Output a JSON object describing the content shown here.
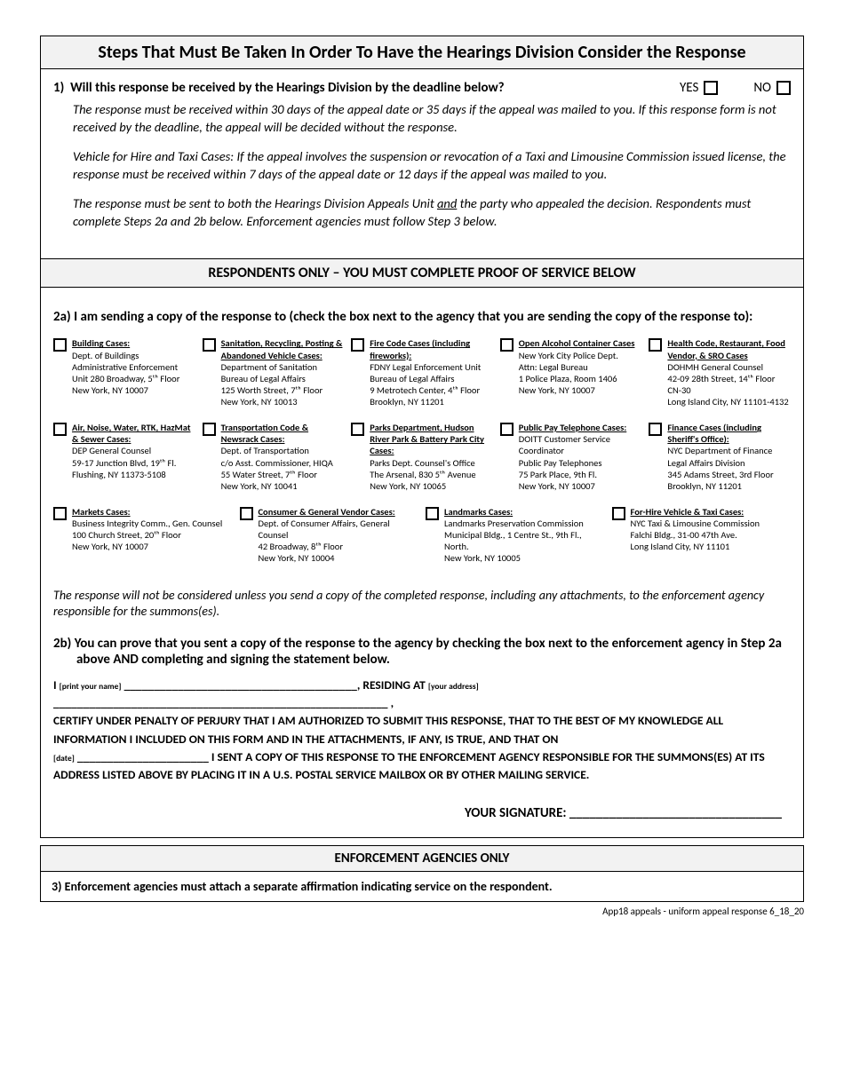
{
  "main_title": "Steps That Must Be Taken In Order To Have the Hearings Division Consider the Response",
  "q1": {
    "number": "1)",
    "question": "Will this response be received by the Hearings Division by the deadline below?",
    "yes": "YES",
    "no": "NO",
    "p1": "The response must be received within 30 days of the appeal date or 35 days if the appeal was mailed to you.  If this response form is not received by the deadline, the appeal will be decided without the response.",
    "p2": "Vehicle for Hire and Taxi Cases: If the appeal involves the suspension or revocation of a Taxi and Limousine Commission issued license, the response must be received within 7 days of the appeal date or 12 days if the appeal was mailed to you.",
    "p3a": "The response must be sent to both the Hearings Division Appeals Unit ",
    "p3_and": "and",
    "p3b": " the party who appealed the decision.  Respondents must complete Steps 2a and 2b below.  Enforcement agencies must follow Step 3 below."
  },
  "respondents_bar": "RESPONDENTS ONLY – YOU MUST COMPLETE PROOF OF SERVICE BELOW",
  "q2a_heading": "2a)  I am sending a copy of the response to (check the box next to the agency that you are sending the copy of the response to):",
  "agencies_row1": [
    {
      "title": "Building Cases:",
      "lines": [
        "Dept. of Buildings",
        "Administrative Enforcement",
        "Unit 280 Broadway, 5ᵗʰ Floor",
        "New York, NY 10007"
      ]
    },
    {
      "title": "Sanitation, Recycling, Posting & Abandoned Vehicle Cases:",
      "lines": [
        "Department of Sanitation",
        "Bureau of Legal Affairs",
        "125 Worth Street, 7ᵗʰ Floor",
        "New York, NY 10013"
      ]
    },
    {
      "title": "Fire Code Cases (including fireworks):",
      "lines": [
        "FDNY Legal Enforcement Unit",
        "Bureau of Legal Affairs",
        "9 Metrotech Center, 4ᵗʰ Floor",
        "Brooklyn, NY 11201"
      ]
    },
    {
      "title": "Open Alcohol Container Cases",
      "lines": [
        "New York City Police Dept.",
        "Attn: Legal Bureau",
        "1 Police Plaza, Room 1406",
        "New York, NY 10007"
      ]
    },
    {
      "title": "Health Code, Restaurant, Food Vendor, & SRO Cases",
      "lines": [
        "DOHMH General Counsel",
        "42-09 28th Street, 14ᵗʰ Floor CN-30",
        "Long Island City, NY 11101-4132"
      ]
    }
  ],
  "agencies_row2": [
    {
      "title": "Air, Noise, Water, RTK, HazMat & Sewer Cases:",
      "lines": [
        "DEP General Counsel",
        "59-17 Junction Blvd, 19ᵗʰ Fl.",
        "Flushing, NY 11373-5108"
      ]
    },
    {
      "title": "Transportation Code & Newsrack Cases:",
      "lines": [
        "Dept. of Transportation",
        "c/o Asst. Commissioner,  HIQA",
        "55  Water  Street, 7ᵗʰ Floor",
        "New York, NY 10041"
      ]
    },
    {
      "title": "Parks Department, Hudson River Park & Battery Park City Cases:",
      "lines": [
        "Parks Dept. Counsel's Office",
        "The Arsenal, 830 5ᵗʰ Avenue",
        "New York, NY 10065"
      ]
    },
    {
      "title": "Public Pay Telephone Cases:",
      "lines": [
        "DOITT Customer Service",
        "Coordinator",
        "Public Pay Telephones",
        "75 Park Place, 9th Fl.",
        "New York, NY 10007"
      ]
    },
    {
      "title": "Finance Cases (including Sheriff's Office):",
      "lines": [
        "NYC Department of Finance",
        "Legal Affairs Division",
        "345 Adams Street, 3rd Floor",
        "Brooklyn, NY 11201"
      ]
    }
  ],
  "agencies_row3": [
    {
      "title": "Markets Cases:",
      "lines": [
        "Business Integrity Comm., Gen. Counsel",
        "100 Church Street, 20ᵗʰ Floor",
        "New York, NY 10007"
      ]
    },
    {
      "title": "Consumer & General Vendor Cases:",
      "lines": [
        "Dept. of Consumer Affairs, General Counsel",
        "42 Broadway, 8ᵗʰ Floor",
        "New York, NY 10004"
      ]
    },
    {
      "title": "Landmarks Cases:",
      "lines": [
        "Landmarks Preservation Commission",
        "Municipal Bldg., 1 Centre St., 9th Fl., North.",
        "New York, NY 10005"
      ]
    },
    {
      "title": "For-Hire Vehicle & Taxi Cases:",
      "lines": [
        "NYC Taxi & Limousine Commission",
        "Falchi Bldg., 31-00 47th Ave.",
        "Long Island City, NY 11101"
      ]
    }
  ],
  "note": "The response will not be considered unless you send a copy of the completed response, including any attachments, to the enforcement agency responsible for the summons(es).",
  "q2b_heading": "2b)  You can prove that you sent a copy of the response to the agency by checking the box next to the enforcement agency in Step 2a above AND completing and signing the statement below.",
  "cert": {
    "i": "I ",
    "print_name_label": "[print your name]",
    "residing": ", RESIDING AT ",
    "address_label": "[your address]",
    "line2": "CERTIFY UNDER PENALTY OF PERJURY THAT I AM AUTHORIZED TO SUBMIT THIS RESPONSE, THAT TO THE BEST OF MY KNOWLEDGE ALL INFORMATION I INCLUDED ON THIS FORM AND IN THE ATTACHMENTS, IF ANY, IS TRUE, AND THAT ON",
    "date_label": "[date]",
    "line3": " I SENT A COPY OF THIS RESPONSE TO THE ENFORCEMENT AGENCY RESPONSIBLE FOR THE SUMMONS(ES) AT ITS ADDRESS LISTED ABOVE BY PLACING IT IN A U.S. POSTAL SERVICE MAILBOX OR BY OTHER MAILING SERVICE."
  },
  "signature_label": "YOUR SIGNATURE: ________________________________",
  "enf_title": "ENFORCEMENT AGENCIES ONLY",
  "q3": "3)  Enforcement agencies must attach a separate affirmation indicating service on the respondent.",
  "footer": "App18 appeals - uniform appeal response 6_18_20"
}
